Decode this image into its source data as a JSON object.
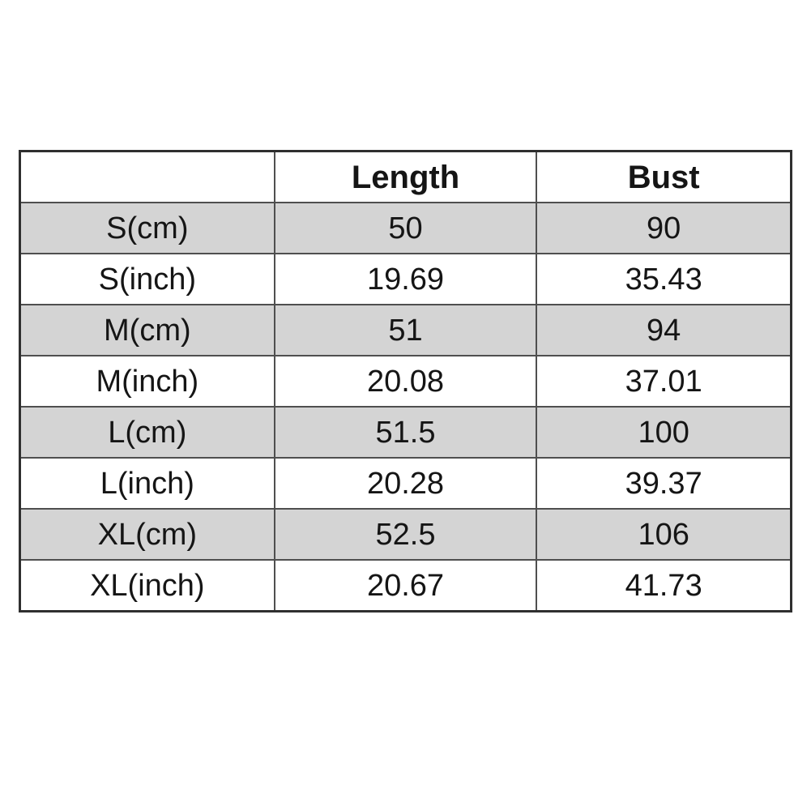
{
  "chart_data": {
    "type": "table",
    "title": "",
    "columns": [
      "",
      "Length",
      "Bust"
    ],
    "rows": [
      [
        "S(cm)",
        "50",
        "90"
      ],
      [
        "S(inch)",
        "19.69",
        "35.43"
      ],
      [
        "M(cm)",
        "51",
        "94"
      ],
      [
        "M(inch)",
        "20.08",
        "37.01"
      ],
      [
        "L(cm)",
        "51.5",
        "100"
      ],
      [
        "L(inch)",
        "20.28",
        "39.37"
      ],
      [
        "XL(cm)",
        "52.5",
        "106"
      ],
      [
        "XL(inch)",
        "20.67",
        "41.73"
      ]
    ],
    "shaded_row_indices": [
      0,
      2,
      4,
      6
    ]
  },
  "colors": {
    "row_shade": "#d4d4d4",
    "grid_border": "#4f4f4f",
    "outer_border": "#2f2f2f",
    "text": "#151515",
    "background": "#ffffff"
  }
}
